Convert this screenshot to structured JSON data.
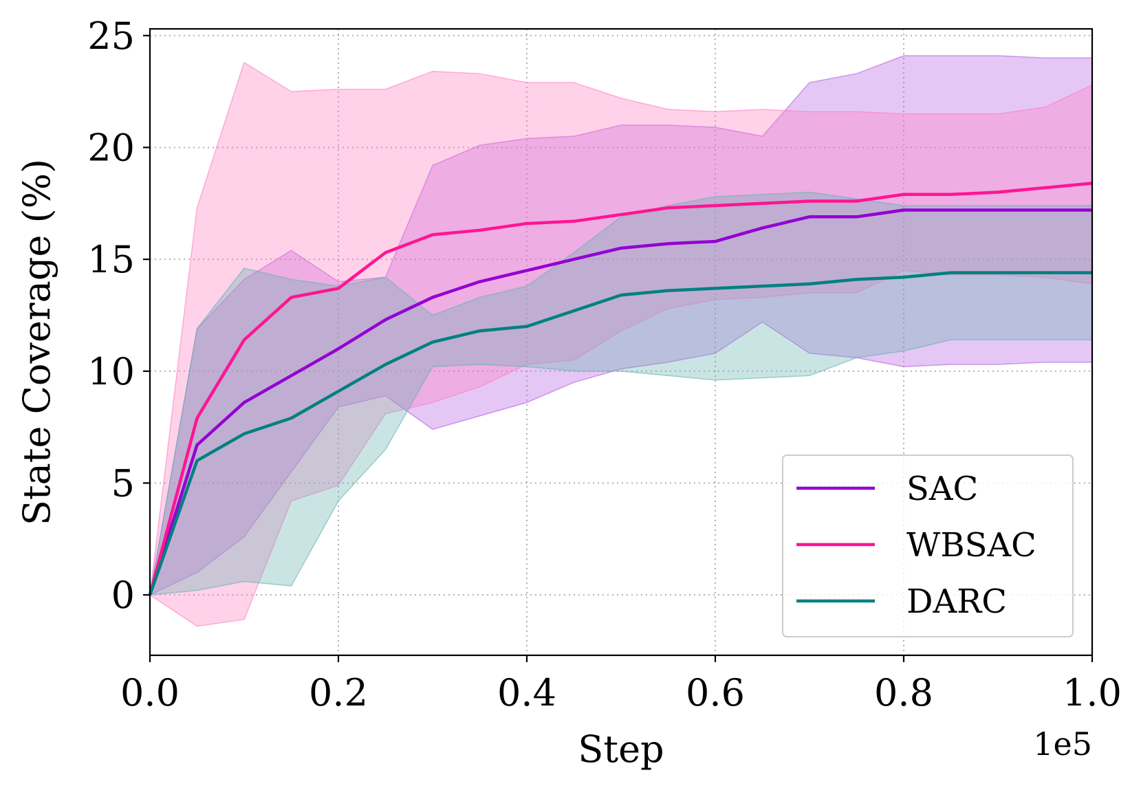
{
  "chart_data": {
    "type": "line",
    "title": "",
    "xlabel": "Step",
    "ylabel": "State Coverage (%)",
    "x_offset_label": "1e5",
    "xlim": [
      0.0,
      1.0
    ],
    "ylim": [
      -2.7,
      25.3
    ],
    "xticks": [
      0.0,
      0.2,
      0.4,
      0.6,
      0.8,
      1.0
    ],
    "xtick_labels": [
      "0.0",
      "0.2",
      "0.4",
      "0.6",
      "0.8",
      "1.0"
    ],
    "yticks": [
      0,
      5,
      10,
      15,
      20,
      25
    ],
    "ytick_labels": [
      "0",
      "5",
      "10",
      "15",
      "20",
      "25"
    ],
    "grid": true,
    "legend_position": "lower-right",
    "x": [
      0.0,
      0.05,
      0.1,
      0.15,
      0.2,
      0.25,
      0.3,
      0.35,
      0.4,
      0.45,
      0.5,
      0.55,
      0.6,
      0.65,
      0.7,
      0.75,
      0.8,
      0.85,
      0.9,
      0.95,
      1.0
    ],
    "series": [
      {
        "name": "SAC",
        "color": "#9400d3",
        "band_color": "#b55ee3",
        "values": [
          0.0,
          6.7,
          8.6,
          9.8,
          11.0,
          12.3,
          13.3,
          14.0,
          14.5,
          15.0,
          15.5,
          15.7,
          15.8,
          16.4,
          16.9,
          16.9,
          17.2,
          17.2,
          17.2,
          17.2,
          17.2
        ],
        "upper": [
          0.0,
          11.9,
          14.1,
          15.4,
          14.0,
          14.2,
          19.2,
          20.1,
          20.4,
          20.5,
          21.0,
          21.0,
          20.9,
          20.5,
          22.9,
          23.3,
          24.1,
          24.1,
          24.1,
          24.0,
          24.0
        ],
        "lower": [
          0.0,
          1.0,
          2.6,
          5.5,
          8.4,
          8.9,
          7.4,
          8.0,
          8.6,
          9.5,
          10.1,
          10.4,
          10.8,
          12.2,
          10.8,
          10.6,
          10.2,
          10.3,
          10.3,
          10.4,
          10.4
        ]
      },
      {
        "name": "WBSAC",
        "color": "#ff1493",
        "band_color": "#ff7ec3",
        "values": [
          0.0,
          7.9,
          11.4,
          13.3,
          13.7,
          15.3,
          16.1,
          16.3,
          16.6,
          16.7,
          17.0,
          17.3,
          17.4,
          17.5,
          17.6,
          17.6,
          17.9,
          17.9,
          18.0,
          18.2,
          18.4
        ],
        "upper": [
          0.0,
          17.3,
          23.8,
          22.5,
          22.6,
          22.6,
          23.4,
          23.3,
          22.9,
          22.9,
          22.2,
          21.7,
          21.6,
          21.7,
          21.6,
          21.6,
          21.5,
          21.5,
          21.5,
          21.8,
          22.8
        ],
        "lower": [
          0.0,
          -1.4,
          -1.1,
          4.2,
          4.9,
          8.1,
          8.6,
          9.3,
          10.3,
          10.5,
          11.8,
          12.8,
          13.2,
          13.3,
          13.5,
          13.5,
          14.5,
          14.3,
          14.3,
          14.2,
          13.9
        ]
      },
      {
        "name": "DARC",
        "color": "#008080",
        "band_color": "#66b3b3",
        "values": [
          0.0,
          6.0,
          7.2,
          7.9,
          9.1,
          10.3,
          11.3,
          11.8,
          12.0,
          12.7,
          13.4,
          13.6,
          13.7,
          13.8,
          13.9,
          14.1,
          14.2,
          14.4,
          14.4,
          14.4,
          14.4
        ],
        "upper": [
          0.0,
          11.9,
          14.6,
          14.1,
          13.8,
          14.2,
          12.5,
          13.3,
          13.8,
          15.3,
          16.9,
          17.4,
          17.8,
          17.9,
          18.0,
          17.7,
          17.4,
          17.4,
          17.4,
          17.4,
          17.4
        ],
        "lower": [
          0.0,
          0.2,
          0.6,
          0.4,
          4.2,
          6.5,
          10.2,
          10.3,
          10.2,
          10.0,
          10.0,
          9.8,
          9.6,
          9.7,
          9.8,
          10.6,
          10.9,
          11.4,
          11.4,
          11.4,
          11.4
        ]
      }
    ]
  }
}
